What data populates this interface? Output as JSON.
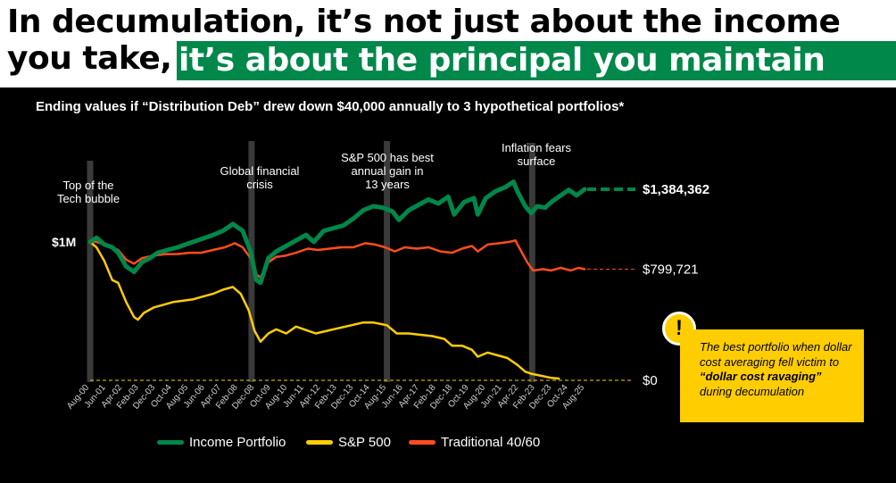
{
  "headline": {
    "line1": "In decumulation, it’s not just about the income",
    "line2": "you take,",
    "line2_highlight": "it’s about the principal you maintain"
  },
  "colors": {
    "income": "#00874a",
    "sp500": "#ffcd00",
    "traditional": "#ff4d1c",
    "highlight": "#00874a",
    "callout": "#ffcd00"
  },
  "callout": {
    "icon": "exclamation-icon",
    "text_before": "The best portfolio when dollar cost averaging fell victim to ",
    "text_bold": "“dollar cost ravaging”",
    "text_after": " during decumulation"
  },
  "chart_data": {
    "type": "line",
    "title": "Ending values if “Distribution Deb” drew down $40,000 annually to 3 hypothetical portfolios*",
    "xlabel": "",
    "ylabel": "",
    "x_tick_labels": [
      "Aug-00",
      "Jun-01",
      "Apr-02",
      "Feb-03",
      "Dec-03",
      "Oct-04",
      "Aug-05",
      "Jun-06",
      "Apr-07",
      "Feb-08",
      "Dec-08",
      "Oct-09",
      "Aug-10",
      "Jun-11",
      "Apr-12",
      "Feb-13",
      "Dec-13",
      "Oct-14",
      "Aug-15",
      "Jun-16",
      "Apr-17",
      "Feb-18",
      "Dec-18",
      "Oct-19",
      "Aug-20",
      "Jun-21",
      "Apr-22",
      "Feb-23",
      "Dec-23",
      "Oct-24",
      "Aug-25"
    ],
    "y_range": [
      0,
      1750000
    ],
    "start_label": "$1M",
    "grid": false,
    "legend_position": "bottom",
    "events": [
      {
        "date": 2000.58,
        "label": "Top of the Tech bubble"
      },
      {
        "date": 2008.75,
        "label": "Global financial crisis"
      },
      {
        "date": 2015.6,
        "label": "S&P 500 has best annual gain in 13 years"
      },
      {
        "date": 2022.95,
        "label": "Inflation fears surface"
      }
    ],
    "series": [
      {
        "name": "Income Portfolio",
        "end_label": "$1,384,362",
        "end_value": 1384362,
        "points": [
          [
            2000.58,
            1000000
          ],
          [
            2000.9,
            1030000
          ],
          [
            2001.3,
            980000
          ],
          [
            2001.7,
            960000
          ],
          [
            2002.0,
            920000
          ],
          [
            2002.4,
            820000
          ],
          [
            2002.8,
            780000
          ],
          [
            2003.2,
            850000
          ],
          [
            2003.6,
            880000
          ],
          [
            2004.0,
            920000
          ],
          [
            2004.5,
            940000
          ],
          [
            2005.0,
            960000
          ],
          [
            2005.6,
            990000
          ],
          [
            2006.2,
            1020000
          ],
          [
            2006.8,
            1050000
          ],
          [
            2007.3,
            1080000
          ],
          [
            2007.8,
            1130000
          ],
          [
            2008.3,
            1080000
          ],
          [
            2008.7,
            930000
          ],
          [
            2009.0,
            720000
          ],
          [
            2009.2,
            700000
          ],
          [
            2009.6,
            880000
          ],
          [
            2010.0,
            930000
          ],
          [
            2010.5,
            970000
          ],
          [
            2011.0,
            1010000
          ],
          [
            2011.5,
            1050000
          ],
          [
            2011.9,
            1000000
          ],
          [
            2012.4,
            1080000
          ],
          [
            2012.9,
            1100000
          ],
          [
            2013.4,
            1120000
          ],
          [
            2013.9,
            1170000
          ],
          [
            2014.4,
            1230000
          ],
          [
            2014.9,
            1260000
          ],
          [
            2015.4,
            1250000
          ],
          [
            2015.9,
            1220000
          ],
          [
            2016.2,
            1160000
          ],
          [
            2016.7,
            1230000
          ],
          [
            2017.2,
            1270000
          ],
          [
            2017.7,
            1310000
          ],
          [
            2018.2,
            1280000
          ],
          [
            2018.7,
            1330000
          ],
          [
            2019.0,
            1200000
          ],
          [
            2019.5,
            1290000
          ],
          [
            2020.0,
            1320000
          ],
          [
            2020.2,
            1200000
          ],
          [
            2020.6,
            1320000
          ],
          [
            2021.1,
            1370000
          ],
          [
            2021.6,
            1400000
          ],
          [
            2022.0,
            1440000
          ],
          [
            2022.2,
            1370000
          ],
          [
            2022.6,
            1260000
          ],
          [
            2022.9,
            1210000
          ],
          [
            2023.2,
            1260000
          ],
          [
            2023.6,
            1250000
          ],
          [
            2024.0,
            1300000
          ],
          [
            2024.4,
            1340000
          ],
          [
            2024.8,
            1380000
          ],
          [
            2025.2,
            1340000
          ],
          [
            2025.6,
            1384362
          ]
        ]
      },
      {
        "name": "S&P 500",
        "end_label": "$0",
        "end_value": 0,
        "points": [
          [
            2000.58,
            1000000
          ],
          [
            2000.9,
            960000
          ],
          [
            2001.3,
            860000
          ],
          [
            2001.7,
            720000
          ],
          [
            2002.0,
            700000
          ],
          [
            2002.4,
            560000
          ],
          [
            2002.8,
            450000
          ],
          [
            2003.0,
            430000
          ],
          [
            2003.3,
            480000
          ],
          [
            2003.8,
            520000
          ],
          [
            2004.3,
            540000
          ],
          [
            2004.8,
            560000
          ],
          [
            2005.3,
            570000
          ],
          [
            2005.8,
            580000
          ],
          [
            2006.3,
            600000
          ],
          [
            2006.8,
            620000
          ],
          [
            2007.3,
            650000
          ],
          [
            2007.8,
            670000
          ],
          [
            2008.2,
            620000
          ],
          [
            2008.6,
            500000
          ],
          [
            2008.9,
            350000
          ],
          [
            2009.2,
            270000
          ],
          [
            2009.6,
            330000
          ],
          [
            2010.0,
            360000
          ],
          [
            2010.5,
            330000
          ],
          [
            2011.0,
            380000
          ],
          [
            2011.6,
            350000
          ],
          [
            2012.0,
            330000
          ],
          [
            2012.6,
            350000
          ],
          [
            2013.2,
            370000
          ],
          [
            2013.8,
            390000
          ],
          [
            2014.4,
            410000
          ],
          [
            2014.9,
            410000
          ],
          [
            2015.6,
            390000
          ],
          [
            2016.1,
            330000
          ],
          [
            2016.7,
            330000
          ],
          [
            2017.3,
            320000
          ],
          [
            2017.9,
            310000
          ],
          [
            2018.5,
            290000
          ],
          [
            2018.9,
            240000
          ],
          [
            2019.4,
            240000
          ],
          [
            2019.9,
            210000
          ],
          [
            2020.2,
            160000
          ],
          [
            2020.7,
            190000
          ],
          [
            2021.2,
            170000
          ],
          [
            2021.7,
            150000
          ],
          [
            2022.2,
            100000
          ],
          [
            2022.6,
            50000
          ],
          [
            2022.9,
            35000
          ],
          [
            2023.4,
            20000
          ],
          [
            2023.9,
            5000
          ],
          [
            2024.3,
            0
          ]
        ]
      },
      {
        "name": "Traditional 40/60",
        "end_label": "$799,721",
        "end_value": 799721,
        "points": [
          [
            2000.58,
            1000000
          ],
          [
            2000.9,
            1000000
          ],
          [
            2001.3,
            980000
          ],
          [
            2001.7,
            960000
          ],
          [
            2002.0,
            940000
          ],
          [
            2002.4,
            870000
          ],
          [
            2002.8,
            840000
          ],
          [
            2003.2,
            880000
          ],
          [
            2003.8,
            900000
          ],
          [
            2004.4,
            910000
          ],
          [
            2005.0,
            910000
          ],
          [
            2005.6,
            920000
          ],
          [
            2006.2,
            920000
          ],
          [
            2006.8,
            940000
          ],
          [
            2007.4,
            960000
          ],
          [
            2007.9,
            990000
          ],
          [
            2008.3,
            960000
          ],
          [
            2008.7,
            880000
          ],
          [
            2009.0,
            760000
          ],
          [
            2009.2,
            740000
          ],
          [
            2009.6,
            850000
          ],
          [
            2010.0,
            890000
          ],
          [
            2010.5,
            900000
          ],
          [
            2011.0,
            920000
          ],
          [
            2011.6,
            950000
          ],
          [
            2012.1,
            940000
          ],
          [
            2012.7,
            950000
          ],
          [
            2013.3,
            960000
          ],
          [
            2013.9,
            960000
          ],
          [
            2014.5,
            990000
          ],
          [
            2015.0,
            980000
          ],
          [
            2015.5,
            960000
          ],
          [
            2016.0,
            930000
          ],
          [
            2016.5,
            960000
          ],
          [
            2017.1,
            950000
          ],
          [
            2017.7,
            960000
          ],
          [
            2018.3,
            930000
          ],
          [
            2018.9,
            920000
          ],
          [
            2019.4,
            950000
          ],
          [
            2019.9,
            970000
          ],
          [
            2020.2,
            930000
          ],
          [
            2020.7,
            980000
          ],
          [
            2021.3,
            990000
          ],
          [
            2021.8,
            1000000
          ],
          [
            2022.1,
            1010000
          ],
          [
            2022.4,
            930000
          ],
          [
            2022.7,
            850000
          ],
          [
            2023.0,
            790000
          ],
          [
            2023.5,
            800000
          ],
          [
            2023.9,
            790000
          ],
          [
            2024.4,
            810000
          ],
          [
            2024.9,
            790000
          ],
          [
            2025.3,
            810000
          ],
          [
            2025.6,
            799721
          ]
        ]
      }
    ]
  },
  "legend": [
    {
      "label": "Income Portfolio",
      "color": "#00874a"
    },
    {
      "label": "S&P 500",
      "color": "#ffcd00"
    },
    {
      "label": "Traditional 40/60",
      "color": "#ff4d1c"
    }
  ]
}
